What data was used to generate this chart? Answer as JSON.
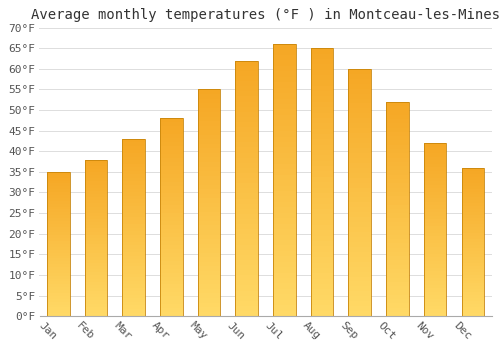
{
  "title": "Average monthly temperatures (°F ) in Montceau-les-Mines",
  "months": [
    "Jan",
    "Feb",
    "Mar",
    "Apr",
    "May",
    "Jun",
    "Jul",
    "Aug",
    "Sep",
    "Oct",
    "Nov",
    "Dec"
  ],
  "values": [
    35,
    38,
    43,
    48,
    55,
    62,
    66,
    65,
    60,
    52,
    42,
    36
  ],
  "bar_color_top": "#F5A623",
  "bar_color_bottom": "#FFD966",
  "bar_edge_color": "#C8850A",
  "background_color": "#FFFFFF",
  "grid_color": "#DDDDDD",
  "title_fontsize": 10,
  "tick_fontsize": 8,
  "ylim": [
    0,
    70
  ],
  "ytick_step": 5,
  "bar_width": 0.6,
  "label_rotation": -45
}
